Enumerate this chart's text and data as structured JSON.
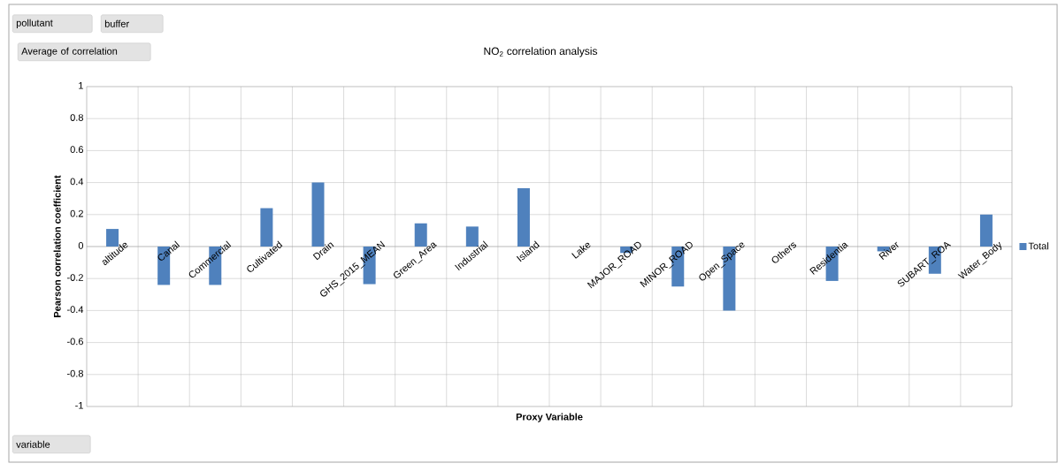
{
  "chart_data": {
    "type": "bar",
    "title": "NO$_{2}$ correlation analysis",
    "xlabel": "Proxy Variable",
    "ylabel": "Pearson correlation coefficient",
    "categories": [
      "altitude",
      "Canal",
      "Commercial",
      "Cultivated",
      "Drain",
      "GHS_2015_MEAN",
      "Green_Area",
      "Industrial",
      "Island",
      "Lake",
      "MAJOR_ROAD",
      "MINOR_ROAD",
      "Open_Space",
      "Others",
      "Residentia",
      "River",
      "SUBART_ROA",
      "Water_Body"
    ],
    "series": [
      {
        "name": "Total",
        "color": "#4f81bd",
        "values": [
          0.11,
          -0.24,
          -0.24,
          0.24,
          0.4,
          -0.235,
          0.145,
          0.125,
          0.365,
          null,
          -0.04,
          -0.25,
          -0.4,
          null,
          -0.215,
          -0.03,
          -0.17,
          0.2
        ]
      }
    ],
    "ylim": [
      -1,
      1
    ],
    "yticks": [
      -1,
      -0.8,
      -0.6,
      -0.4,
      -0.2,
      0,
      0.2,
      0.4,
      0.6,
      0.8,
      1
    ],
    "grid": true,
    "legend": "right",
    "annotations": [
      "pollutant",
      "buffer",
      "Average of correlation",
      "variable"
    ]
  }
}
